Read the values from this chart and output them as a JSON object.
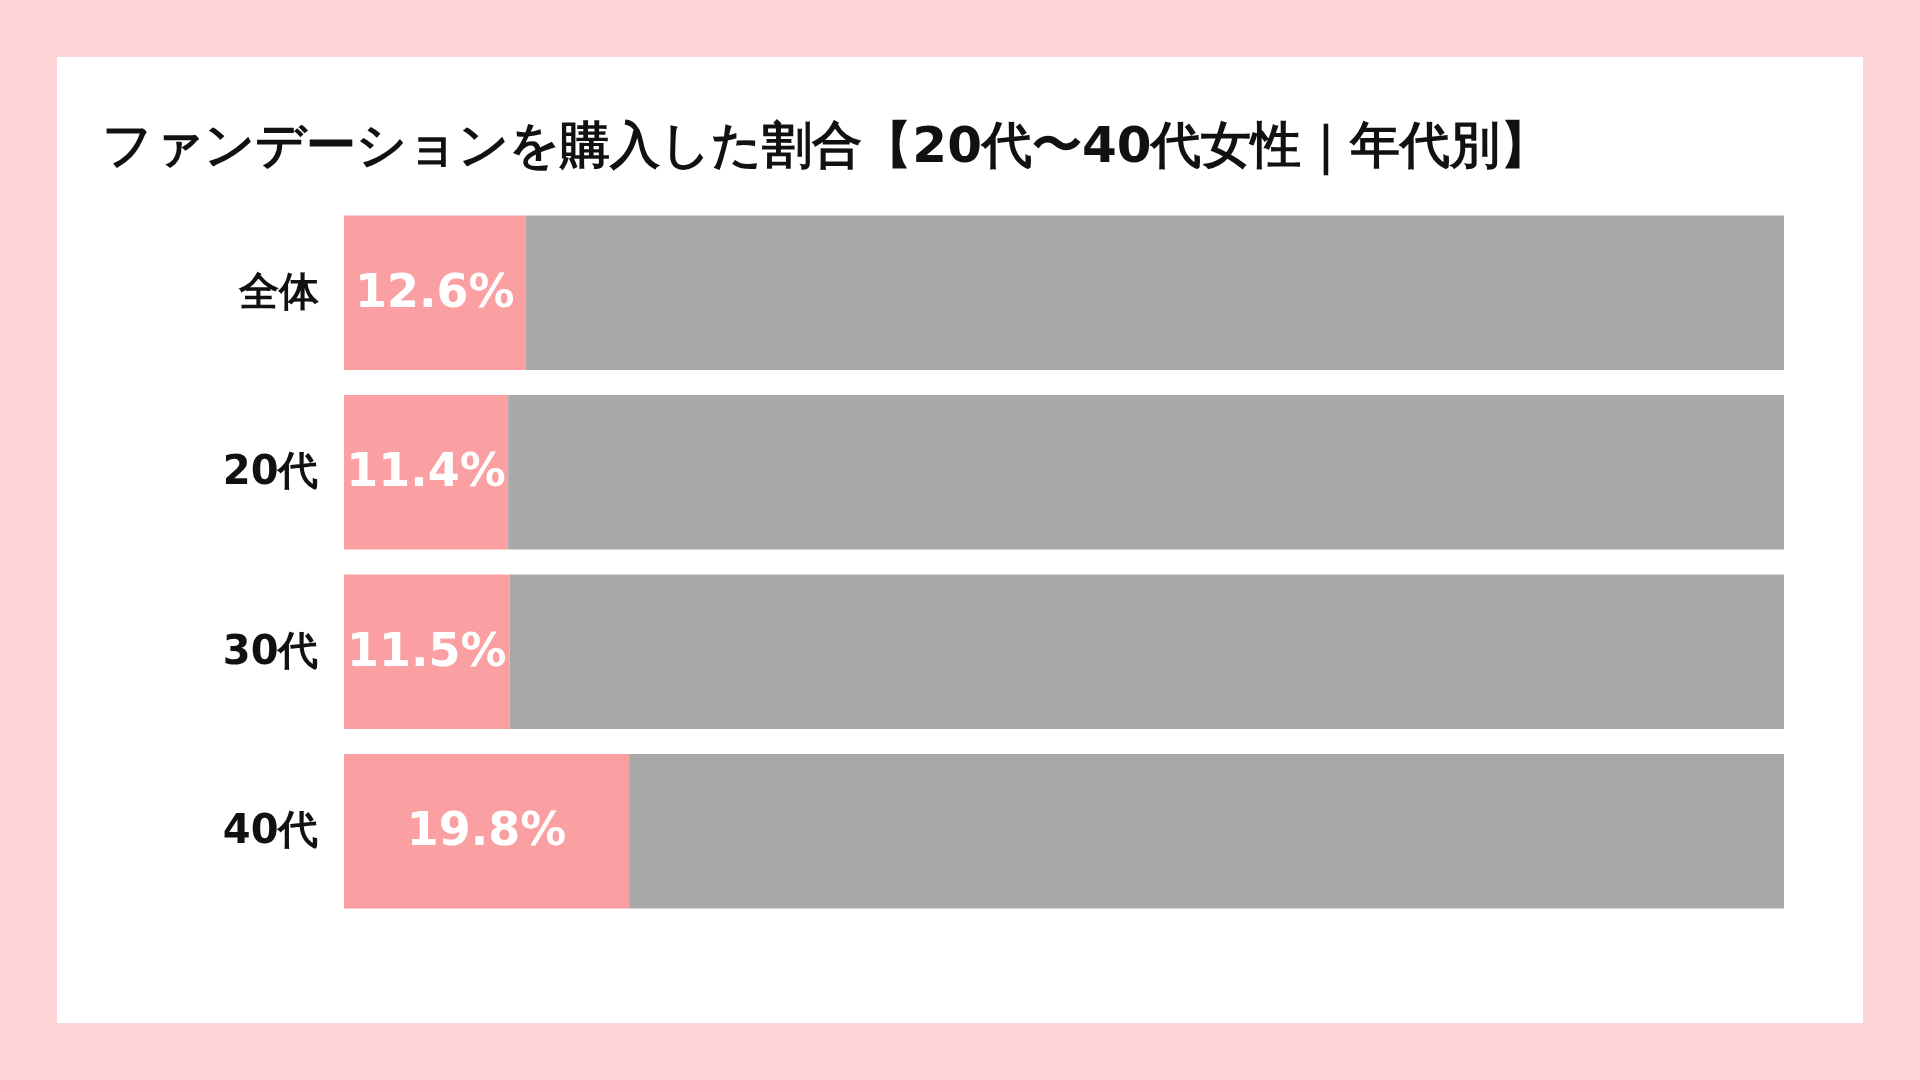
{
  "chart_data": {
    "type": "bar",
    "orientation": "horizontal",
    "stacked": true,
    "title": "ファンデーションを購入した割合【20代〜40代女性｜年代別】",
    "categories": [
      "全体",
      "20代",
      "30代",
      "40代"
    ],
    "xlim": [
      0,
      100
    ],
    "tick_labels": "y",
    "series": [
      {
        "color": "#fba0a2",
        "values": [
          12.6,
          11.4,
          11.5,
          19.8
        ],
        "value_labels": [
          "12.6%",
          "11.4%",
          "11.5%",
          "19.8%"
        ]
      },
      {
        "color": "#a8a8a8",
        "values": [
          87.4,
          88.6,
          88.5,
          80.2
        ]
      }
    ]
  }
}
